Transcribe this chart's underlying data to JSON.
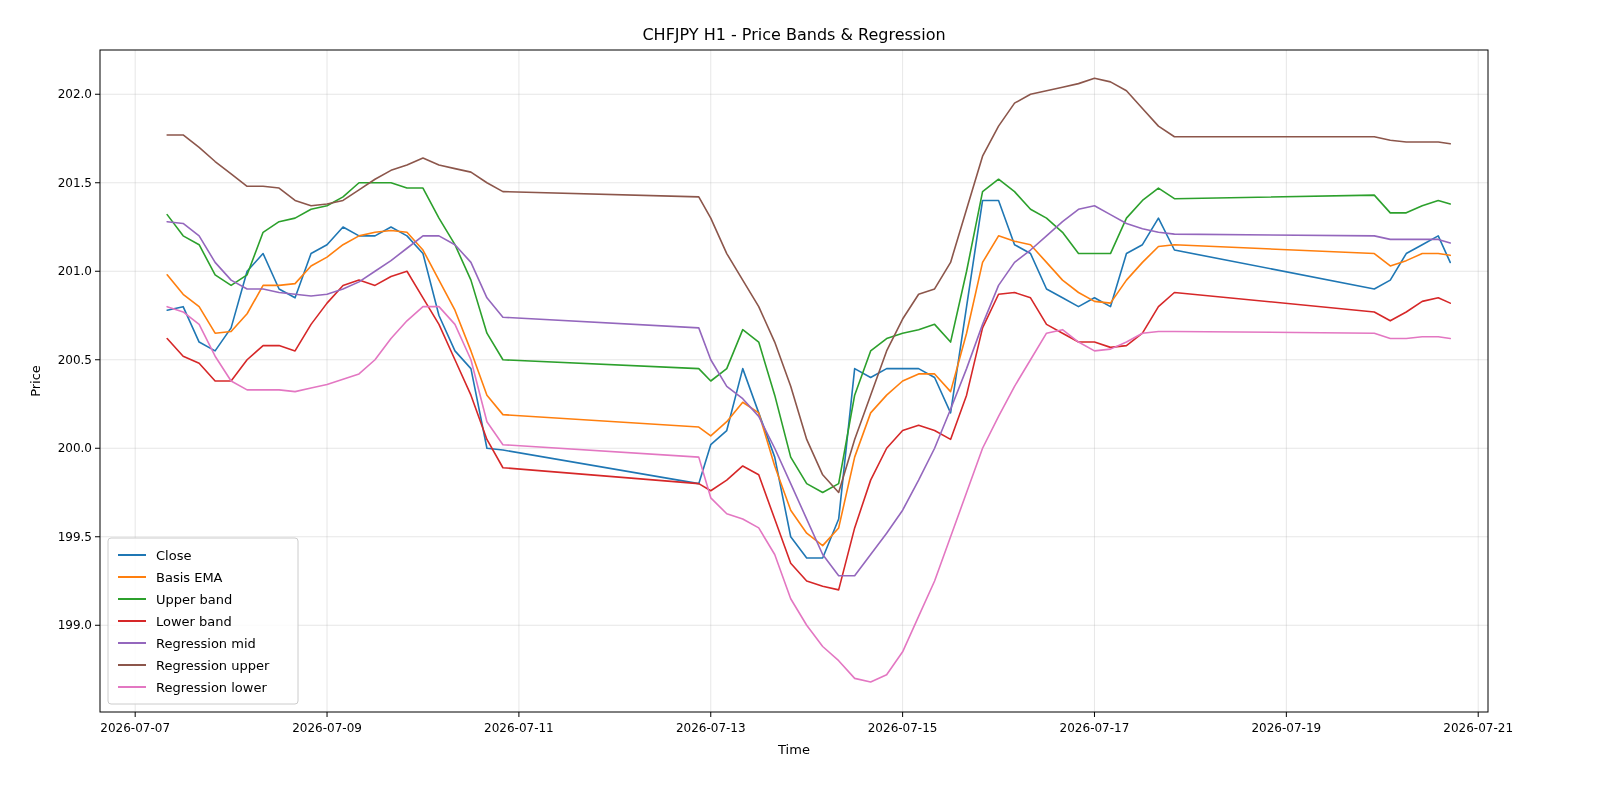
{
  "chart_data": {
    "type": "line",
    "title": "CHFJPY H1 - Price Bands & Regression",
    "xlabel": "Time",
    "ylabel": "Price",
    "x": [
      "2026-07-07T08:00",
      "2026-07-07T12:00",
      "2026-07-07T16:00",
      "2026-07-07T20:00",
      "2026-07-08T00:00",
      "2026-07-08T04:00",
      "2026-07-08T08:00",
      "2026-07-08T12:00",
      "2026-07-08T16:00",
      "2026-07-08T20:00",
      "2026-07-09T00:00",
      "2026-07-09T04:00",
      "2026-07-09T08:00",
      "2026-07-09T12:00",
      "2026-07-09T16:00",
      "2026-07-09T20:00",
      "2026-07-10T00:00",
      "2026-07-10T04:00",
      "2026-07-10T08:00",
      "2026-07-10T12:00",
      "2026-07-10T16:00",
      "2026-07-10T20:00",
      "2026-07-12T21:00",
      "2026-07-13T00:00",
      "2026-07-13T04:00",
      "2026-07-13T08:00",
      "2026-07-13T12:00",
      "2026-07-13T16:00",
      "2026-07-13T20:00",
      "2026-07-14T00:00",
      "2026-07-14T04:00",
      "2026-07-14T08:00",
      "2026-07-14T12:00",
      "2026-07-14T16:00",
      "2026-07-14T20:00",
      "2026-07-15T00:00",
      "2026-07-15T04:00",
      "2026-07-15T08:00",
      "2026-07-15T12:00",
      "2026-07-15T16:00",
      "2026-07-15T20:00",
      "2026-07-16T00:00",
      "2026-07-16T04:00",
      "2026-07-16T08:00",
      "2026-07-16T12:00",
      "2026-07-16T16:00",
      "2026-07-16T20:00",
      "2026-07-17T00:00",
      "2026-07-17T04:00",
      "2026-07-17T08:00",
      "2026-07-17T12:00",
      "2026-07-17T16:00",
      "2026-07-17T20:00",
      "2026-07-19T22:00",
      "2026-07-20T02:00",
      "2026-07-20T06:00",
      "2026-07-20T10:00",
      "2026-07-20T14:00",
      "2026-07-20T17:00"
    ],
    "series": [
      {
        "name": "Close",
        "color": "#1f77b4",
        "values": [
          200.78,
          200.8,
          200.6,
          200.55,
          200.68,
          201.0,
          201.1,
          200.9,
          200.85,
          201.1,
          201.15,
          201.25,
          201.2,
          201.2,
          201.25,
          201.2,
          201.1,
          200.75,
          200.55,
          200.45,
          200.0,
          199.99,
          199.8,
          200.02,
          200.1,
          200.45,
          200.2,
          199.95,
          199.5,
          199.38,
          199.38,
          199.6,
          200.45,
          200.4,
          200.45,
          200.45,
          200.45,
          200.4,
          200.2,
          200.8,
          201.4,
          201.4,
          201.15,
          201.1,
          200.9,
          200.85,
          200.8,
          200.85,
          200.8,
          201.1,
          201.15,
          201.3,
          201.12,
          200.9,
          200.95,
          201.1,
          201.15,
          201.2,
          201.05
        ]
      },
      {
        "name": "Basis EMA",
        "color": "#ff7f0e",
        "values": [
          200.98,
          200.87,
          200.8,
          200.65,
          200.66,
          200.76,
          200.92,
          200.92,
          200.93,
          201.03,
          201.08,
          201.15,
          201.2,
          201.22,
          201.23,
          201.22,
          201.12,
          200.95,
          200.78,
          200.55,
          200.3,
          200.19,
          200.12,
          200.07,
          200.15,
          200.26,
          200.2,
          199.9,
          199.65,
          199.52,
          199.45,
          199.55,
          199.95,
          200.2,
          200.3,
          200.38,
          200.42,
          200.42,
          200.32,
          200.65,
          201.05,
          201.2,
          201.17,
          201.15,
          201.05,
          200.95,
          200.88,
          200.83,
          200.82,
          200.95,
          201.05,
          201.14,
          201.15,
          201.1,
          201.03,
          201.06,
          201.1,
          201.1,
          201.09
        ]
      },
      {
        "name": "Upper band",
        "color": "#2ca02c",
        "values": [
          201.32,
          201.2,
          201.15,
          200.98,
          200.92,
          200.98,
          201.22,
          201.28,
          201.3,
          201.35,
          201.37,
          201.42,
          201.5,
          201.5,
          201.5,
          201.47,
          201.47,
          201.3,
          201.15,
          200.95,
          200.65,
          200.5,
          200.45,
          200.38,
          200.45,
          200.67,
          200.6,
          200.3,
          199.95,
          199.8,
          199.75,
          199.8,
          200.3,
          200.55,
          200.62,
          200.65,
          200.67,
          200.7,
          200.6,
          201.0,
          201.45,
          201.52,
          201.45,
          201.35,
          201.3,
          201.22,
          201.1,
          201.1,
          201.1,
          201.3,
          201.4,
          201.47,
          201.41,
          201.43,
          201.33,
          201.33,
          201.37,
          201.4,
          201.38
        ]
      },
      {
        "name": "Lower band",
        "color": "#d62728",
        "values": [
          200.62,
          200.52,
          200.48,
          200.38,
          200.38,
          200.5,
          200.58,
          200.58,
          200.55,
          200.7,
          200.82,
          200.92,
          200.95,
          200.92,
          200.97,
          201.0,
          200.85,
          200.7,
          200.5,
          200.3,
          200.05,
          199.89,
          199.8,
          199.76,
          199.82,
          199.9,
          199.85,
          199.6,
          199.35,
          199.25,
          199.22,
          199.2,
          199.55,
          199.82,
          200.0,
          200.1,
          200.13,
          200.1,
          200.05,
          200.3,
          200.68,
          200.87,
          200.88,
          200.85,
          200.7,
          200.65,
          200.6,
          200.6,
          200.57,
          200.58,
          200.65,
          200.8,
          200.88,
          200.77,
          200.72,
          200.77,
          200.83,
          200.85,
          200.82
        ]
      },
      {
        "name": "Regression mid",
        "color": "#9467bd",
        "values": [
          201.28,
          201.27,
          201.2,
          201.05,
          200.95,
          200.9,
          200.9,
          200.88,
          200.87,
          200.86,
          200.87,
          200.9,
          200.94,
          201.0,
          201.06,
          201.13,
          201.2,
          201.2,
          201.15,
          201.05,
          200.85,
          200.74,
          200.68,
          200.5,
          200.35,
          200.28,
          200.18,
          200.0,
          199.8,
          199.6,
          199.4,
          199.28,
          199.28,
          199.4,
          199.52,
          199.65,
          199.82,
          200.0,
          200.22,
          200.45,
          200.7,
          200.92,
          201.05,
          201.12,
          201.2,
          201.28,
          201.35,
          201.37,
          201.32,
          201.27,
          201.24,
          201.22,
          201.21,
          201.2,
          201.18,
          201.18,
          201.18,
          201.18,
          201.16
        ]
      },
      {
        "name": "Regression upper",
        "color": "#8c564b",
        "values": [
          201.77,
          201.77,
          201.7,
          201.62,
          201.55,
          201.48,
          201.48,
          201.47,
          201.4,
          201.37,
          201.38,
          201.4,
          201.46,
          201.52,
          201.57,
          201.6,
          201.64,
          201.6,
          201.58,
          201.56,
          201.5,
          201.45,
          201.42,
          201.3,
          201.1,
          200.95,
          200.8,
          200.6,
          200.35,
          200.05,
          199.85,
          199.75,
          200.05,
          200.3,
          200.55,
          200.73,
          200.87,
          200.9,
          201.05,
          201.35,
          201.65,
          201.82,
          201.95,
          202.0,
          202.02,
          202.04,
          202.06,
          202.09,
          202.07,
          202.02,
          201.92,
          201.82,
          201.76,
          201.76,
          201.74,
          201.73,
          201.73,
          201.73,
          201.72
        ]
      },
      {
        "name": "Regression lower",
        "color": "#e377c2",
        "values": [
          200.8,
          200.77,
          200.7,
          200.52,
          200.38,
          200.33,
          200.33,
          200.33,
          200.32,
          200.34,
          200.36,
          200.39,
          200.42,
          200.5,
          200.62,
          200.72,
          200.8,
          200.8,
          200.7,
          200.5,
          200.15,
          200.02,
          199.95,
          199.72,
          199.63,
          199.6,
          199.55,
          199.4,
          199.15,
          199.0,
          198.88,
          198.8,
          198.7,
          198.68,
          198.72,
          198.85,
          199.05,
          199.25,
          199.5,
          199.75,
          200.0,
          200.18,
          200.35,
          200.5,
          200.65,
          200.67,
          200.6,
          200.55,
          200.56,
          200.6,
          200.65,
          200.66,
          200.66,
          200.65,
          200.62,
          200.62,
          200.63,
          200.63,
          200.62
        ]
      }
    ],
    "xlim": [
      "2026-07-06T15:12",
      "2026-07-21T02:27"
    ],
    "xticks": [
      "2026-07-07",
      "2026-07-09",
      "2026-07-11",
      "2026-07-13",
      "2026-07-15",
      "2026-07-17",
      "2026-07-19",
      "2026-07-21"
    ],
    "ylim": [
      198.51,
      202.25
    ],
    "yticks": [
      {
        "value": 199,
        "label": "199.0"
      },
      {
        "value": 199.5,
        "label": "199.5"
      },
      {
        "value": 200,
        "label": "200.0"
      },
      {
        "value": 200.5,
        "label": "200.5"
      },
      {
        "value": 201,
        "label": "201.0"
      },
      {
        "value": 201.5,
        "label": "201.5"
      },
      {
        "value": 202,
        "label": "202.0"
      }
    ],
    "grid": true,
    "legend": "bottom left"
  }
}
